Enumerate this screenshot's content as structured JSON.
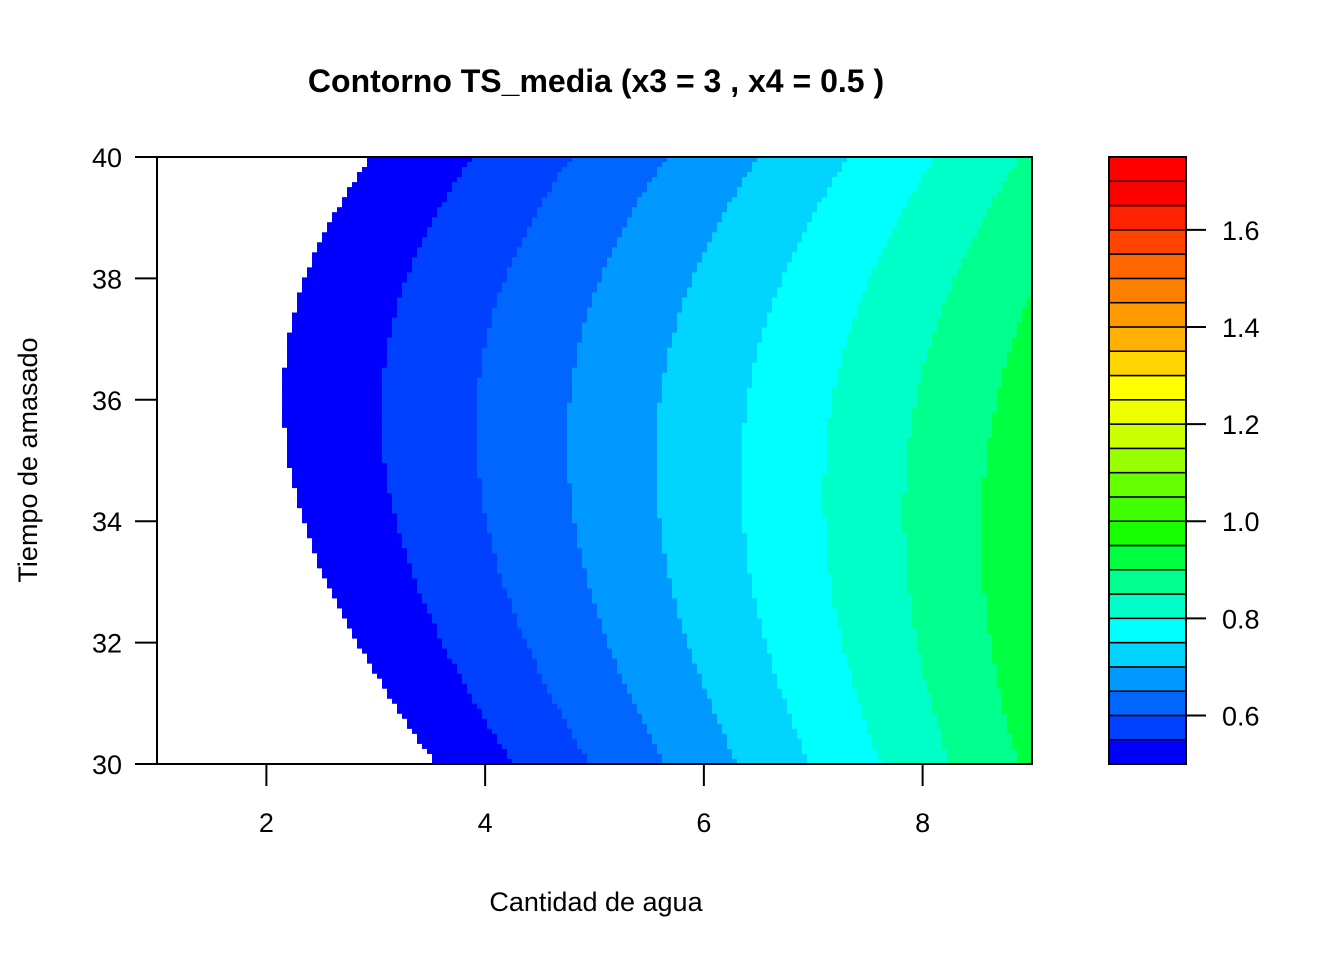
{
  "chart_data": {
    "type": "heatmap",
    "subtype": "filled-contour",
    "title": "Contorno TS_media (x3 = 3 , x4 = 0.5 )",
    "xlabel": "Cantidad de agua",
    "ylabel": "Tiempo de amasado",
    "xlim": [
      1,
      9
    ],
    "ylim": [
      30,
      40
    ],
    "x_ticks": [
      "2",
      "4",
      "6",
      "8"
    ],
    "y_ticks": [
      "30",
      "32",
      "34",
      "36",
      "38",
      "40"
    ],
    "legend": {
      "position": "right",
      "range": [
        0.5,
        1.75
      ],
      "level_step": 0.05,
      "tick_values": [
        0.6,
        0.8,
        1.0,
        1.2,
        1.4,
        1.6
      ],
      "tick_labels": [
        "0.6",
        "0.8",
        "1.0",
        "1.2",
        "1.4",
        "1.6"
      ]
    },
    "palette": [
      "#0000FF",
      "#0040FF",
      "#0066FF",
      "#0099FF",
      "#00D4FF",
      "#00FFFF",
      "#00FFC8",
      "#00FF8C",
      "#00FF40",
      "#18FF00",
      "#40FF00",
      "#66FF00",
      "#99FF00",
      "#CCFF00",
      "#EEFF00",
      "#FFFF00",
      "#FFD400",
      "#FFB000",
      "#FF9900",
      "#FF7F00",
      "#FF6600",
      "#FF4400",
      "#FF2200",
      "#FF0000",
      "#FF0000"
    ],
    "surface_model": {
      "description": "approximate response surface read from contour bands",
      "min_value_below_scale_region": "bottom-left corner (white)"
    }
  }
}
